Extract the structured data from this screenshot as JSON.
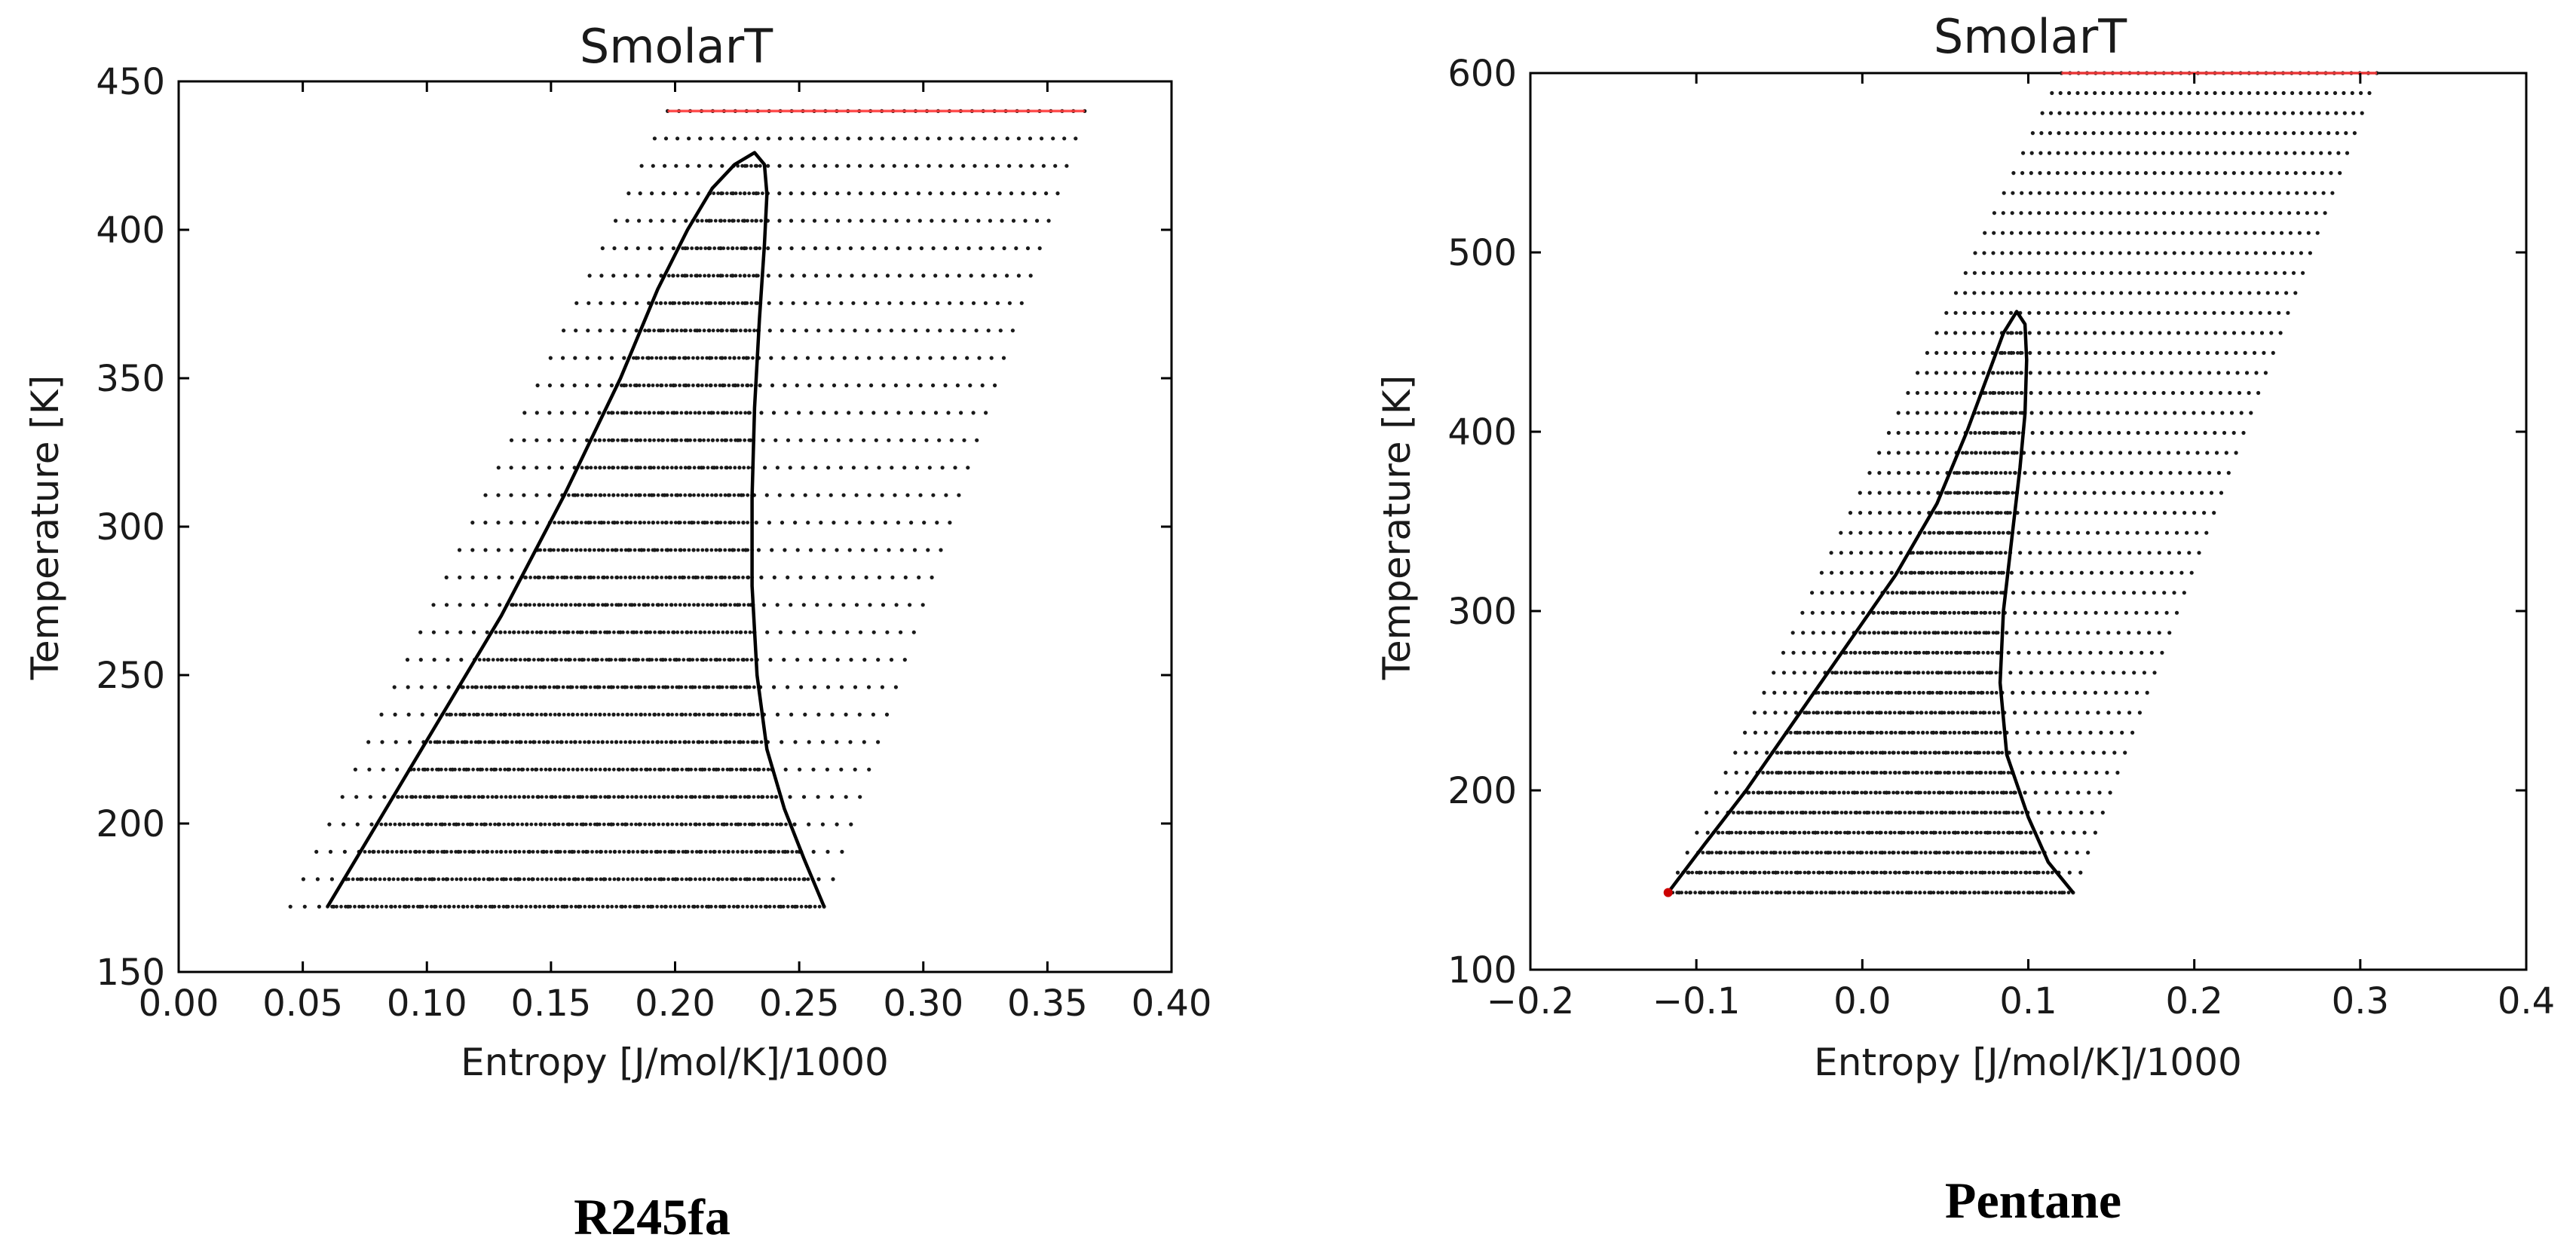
{
  "chart_data": [
    {
      "type": "scatter",
      "title": "SmolarT",
      "xlabel": "Entropy [J/mol/K]/1000",
      "ylabel": "Temperature [K]",
      "caption": "R245fa",
      "xlim": [
        0.0,
        0.4
      ],
      "ylim": [
        150,
        450
      ],
      "xticks": [
        "0.00",
        "0.05",
        "0.10",
        "0.15",
        "0.20",
        "0.25",
        "0.30",
        "0.35",
        "0.40"
      ],
      "yticks": [
        "150",
        "200",
        "250",
        "300",
        "350",
        "400",
        "450"
      ],
      "grid": false,
      "legend": "none",
      "colors": {
        "points": "#1a1a1a",
        "dome": "#000000",
        "top_row": "#ff3b3b"
      },
      "grid_points": {
        "T_min": 172,
        "T_max": 440,
        "rows": 30,
        "s_left_at_T_min": 0.045,
        "s_left_at_T_max": 0.197,
        "s_right_at_T_min": 0.26,
        "s_right_at_T_max": 0.365,
        "points_per_row": 38
      },
      "saturation_curve": {
        "liquid": [
          [
            0.06,
            172
          ],
          [
            0.08,
            200
          ],
          [
            0.105,
            235
          ],
          [
            0.13,
            270
          ],
          [
            0.155,
            310
          ],
          [
            0.178,
            350
          ],
          [
            0.193,
            380
          ],
          [
            0.205,
            400
          ],
          [
            0.215,
            414
          ],
          [
            0.224,
            422
          ],
          [
            0.232,
            426
          ]
        ],
        "vapor": [
          [
            0.232,
            426
          ],
          [
            0.236,
            422
          ],
          [
            0.237,
            412
          ],
          [
            0.236,
            395
          ],
          [
            0.234,
            370
          ],
          [
            0.232,
            340
          ],
          [
            0.231,
            310
          ],
          [
            0.231,
            280
          ],
          [
            0.233,
            250
          ],
          [
            0.237,
            225
          ],
          [
            0.244,
            205
          ],
          [
            0.252,
            188
          ],
          [
            0.26,
            172
          ]
        ],
        "critical_point": [
          0.232,
          426
        ]
      },
      "highlight_row": {
        "T": 440,
        "s_from": 0.197,
        "s_to": 0.365
      }
    },
    {
      "type": "scatter",
      "title": "SmolarT",
      "xlabel": "Entropy [J/mol/K]/1000",
      "ylabel": "Temperature [K]",
      "caption": "Pentane",
      "xlim": [
        -0.2,
        0.4
      ],
      "ylim": [
        100,
        600
      ],
      "xticks": [
        "−0.2",
        "−0.1",
        "0.0",
        "0.1",
        "0.2",
        "0.3",
        "0.4"
      ],
      "yticks": [
        "100",
        "200",
        "300",
        "400",
        "500",
        "600"
      ],
      "grid": false,
      "legend": "none",
      "colors": {
        "points": "#1a1a1a",
        "dome": "#000000",
        "top_row": "#ff3b3b",
        "triple_point": "#cc0000"
      },
      "grid_points": {
        "T_min": 143,
        "T_max": 600,
        "rows": 42,
        "s_left_at_T_min": -0.117,
        "s_left_at_T_max": 0.12,
        "s_right_at_T_min": 0.127,
        "s_right_at_T_max": 0.31,
        "points_per_row": 38
      },
      "saturation_curve": {
        "liquid": [
          [
            -0.117,
            143
          ],
          [
            -0.095,
            170
          ],
          [
            -0.07,
            200
          ],
          [
            -0.04,
            240
          ],
          [
            -0.01,
            280
          ],
          [
            0.02,
            320
          ],
          [
            0.045,
            360
          ],
          [
            0.063,
            400
          ],
          [
            0.075,
            430
          ],
          [
            0.085,
            455
          ],
          [
            0.093,
            467
          ]
        ],
        "vapor": [
          [
            0.093,
            467
          ],
          [
            0.098,
            460
          ],
          [
            0.099,
            440
          ],
          [
            0.098,
            410
          ],
          [
            0.095,
            380
          ],
          [
            0.09,
            340
          ],
          [
            0.085,
            300
          ],
          [
            0.083,
            260
          ],
          [
            0.087,
            220
          ],
          [
            0.1,
            185
          ],
          [
            0.112,
            160
          ],
          [
            0.127,
            143
          ]
        ],
        "critical_point": [
          0.093,
          467
        ]
      },
      "highlight_row": {
        "T": 600,
        "s_from": 0.12,
        "s_to": 0.31
      }
    }
  ]
}
